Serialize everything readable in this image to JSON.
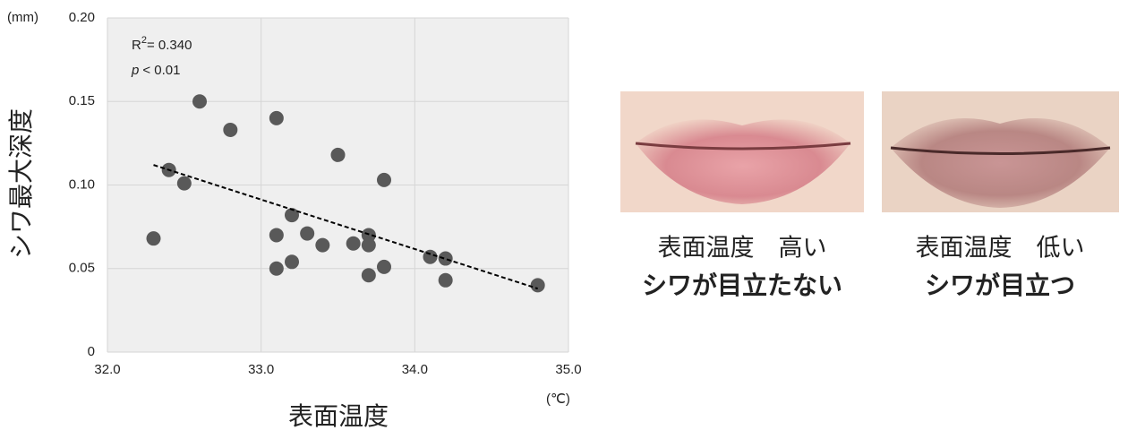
{
  "chart_data": {
    "type": "scatter",
    "y_label": "シワ最大深度",
    "x_label": "表面温度",
    "y_unit": "(mm)",
    "x_unit": "(℃)",
    "annotations": {
      "r_base": "R",
      "r_sup": "2",
      "r_rest": "= 0.340",
      "p_var": "p",
      "p_rest": "< 0.01"
    },
    "x": [
      32.3,
      32.4,
      32.5,
      32.6,
      32.8,
      33.1,
      33.1,
      33.1,
      33.2,
      33.2,
      33.3,
      33.4,
      33.5,
      33.6,
      33.7,
      33.7,
      33.7,
      33.8,
      33.8,
      34.1,
      34.2,
      34.2,
      34.8
    ],
    "values": [
      0.068,
      0.109,
      0.101,
      0.15,
      0.133,
      0.14,
      0.07,
      0.05,
      0.082,
      0.054,
      0.071,
      0.064,
      0.118,
      0.065,
      0.07,
      0.064,
      0.046,
      0.103,
      0.051,
      0.057,
      0.056,
      0.043,
      0.04
    ],
    "color": "#595959",
    "trendline": {
      "x": [
        32.3,
        34.8
      ],
      "values": [
        0.112,
        0.038
      ],
      "color": "#000000"
    },
    "xlim": [
      32,
      35
    ],
    "ylim": [
      0,
      0.2
    ],
    "xticks": [
      {
        "value": 32,
        "label": "32.0"
      },
      {
        "value": 33,
        "label": "33.0"
      },
      {
        "value": 34,
        "label": "34.0"
      },
      {
        "value": 35,
        "label": "35.0"
      }
    ],
    "yticks": [
      0,
      0.05,
      {
        "value": 0.1,
        "label": "0.10"
      },
      0.15,
      {
        "value": 0.2,
        "label": "0.20"
      }
    ],
    "grid": true
  },
  "panels": [
    {
      "caption": "表面温度　高い",
      "label": "シワが目立たない",
      "label_color": "#e00000"
    },
    {
      "caption": "表面温度　低い",
      "label": "シワが目立つ",
      "label_color": "#a6a6a6"
    }
  ]
}
